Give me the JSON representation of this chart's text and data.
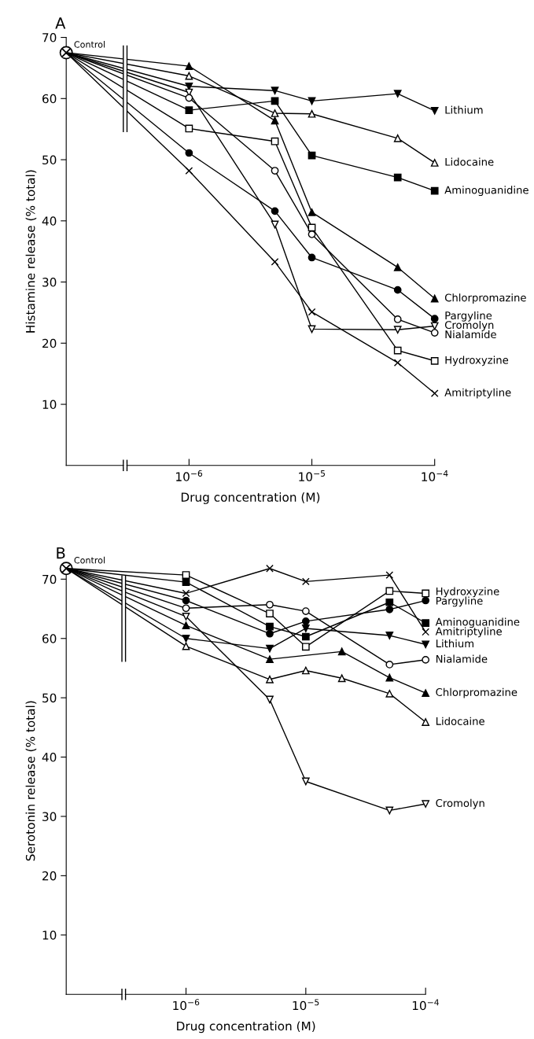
{
  "chart_data": [
    {
      "type": "line",
      "title": "A",
      "xlabel": "Drug concentration (M)",
      "ylabel": "Histamine release (% total)",
      "log": "x",
      "legend": "right",
      "xlim": [
        1e-07,
        0.0001
      ],
      "xticks": [
        {
          "value": 1e-06,
          "label": "10$^{−6}$"
        },
        {
          "value": 1e-05,
          "label": "10$^{−5}$"
        },
        {
          "value": 0.0001,
          "label": "10$^{−4}$"
        }
      ],
      "ylim": [
        0,
        70
      ],
      "yticks": [
        10,
        20,
        30,
        40,
        50,
        60,
        70
      ],
      "x": [
        1e-07,
        1e-06,
        5e-06,
        1e-05,
        5e-05,
        0.0001
      ],
      "series": [
        {
          "name": "Control",
          "type": "scatter",
          "marker": "cross",
          "color": "#000000",
          "x": [
            1e-07
          ],
          "values": [
            67.5
          ]
        },
        {
          "name": "Lithium",
          "marker": "triangle",
          "color": "#000000",
          "values": [
            67.5,
            62.0,
            61.3,
            59.6,
            60.8,
            58.0
          ]
        },
        {
          "name": "Lidocaine",
          "marker": "triangle",
          "color": "#000000",
          "values": [
            67.5,
            63.7,
            57.6,
            57.5,
            53.5,
            49.5
          ]
        },
        {
          "name": "Aminoguanidine",
          "marker": "square",
          "color": "#000000",
          "values": [
            67.5,
            58.1,
            59.6,
            50.7,
            47.1,
            44.9
          ]
        },
        {
          "name": "Chlorpromazine",
          "marker": "triangle",
          "color": "#000000",
          "values": [
            67.5,
            65.3,
            56.4,
            41.4,
            32.4,
            27.3
          ]
        },
        {
          "name": "Pargyline",
          "marker": "circle",
          "color": "#000000",
          "values": [
            67.5,
            51.1,
            41.6,
            34.0,
            28.7,
            24.0
          ]
        },
        {
          "name": "Cromolyn",
          "marker": "triangle",
          "color": "#000000",
          "values": [
            67.5,
            61.0,
            39.4,
            22.3,
            22.2,
            22.8
          ]
        },
        {
          "name": "Nialamide",
          "marker": "circle",
          "color": "#000000",
          "values": [
            67.5,
            60.1,
            48.2,
            37.8,
            23.9,
            21.7
          ]
        },
        {
          "name": "Hydroxyzine",
          "marker": "square",
          "color": "#000000",
          "values": [
            67.5,
            55.1,
            53.0,
            38.9,
            18.8,
            17.1
          ]
        },
        {
          "name": "Amitriptyline",
          "marker": "cross",
          "color": "#000000",
          "values": [
            67.5,
            48.2,
            33.3,
            25.1,
            16.8,
            11.8
          ]
        }
      ]
    },
    {
      "type": "line",
      "title": "B",
      "xlabel": "Drug concentration (M)",
      "ylabel": "Serotonin release (% total)",
      "log": "x",
      "legend": "right",
      "xlim": [
        1e-07,
        0.0001
      ],
      "xticks": [
        {
          "value": 1e-06,
          "label": "10$^{−6}$"
        },
        {
          "value": 1e-05,
          "label": "10$^{−5}$"
        },
        {
          "value": 0.0001,
          "label": "10$^{−4}$"
        }
      ],
      "ylim": [
        0,
        72
      ],
      "yticks": [
        10,
        20,
        30,
        40,
        50,
        60,
        70
      ],
      "x": [
        1e-07,
        1e-06,
        5e-06,
        1e-05,
        5e-05,
        0.0001
      ],
      "series": [
        {
          "name": "Control",
          "type": "scatter",
          "marker": "cross",
          "color": "#000000",
          "x": [
            1e-07
          ],
          "values": [
            71.8
          ]
        },
        {
          "name": "Hydroxyzine",
          "marker": "square",
          "color": "#000000",
          "values": [
            71.8,
            70.7,
            64.2,
            58.6,
            68.0,
            67.6
          ]
        },
        {
          "name": "Pargyline",
          "marker": "circle",
          "color": "#000000",
          "values": [
            71.8,
            66.4,
            60.8,
            62.9,
            64.9,
            66.4
          ]
        },
        {
          "name": "Aminoguanidine",
          "marker": "square",
          "color": "#000000",
          "values": [
            71.8,
            69.5,
            62.0,
            60.3,
            66.1,
            62.6
          ]
        },
        {
          "name": "Amitriptyline",
          "marker": "cross",
          "color": "#000000",
          "values": [
            71.8,
            67.6,
            71.8,
            69.6,
            70.7,
            61.1
          ]
        },
        {
          "name": "Lithium",
          "marker": "triangle",
          "color": "#000000",
          "values": [
            71.8,
            60.0,
            58.3,
            61.7,
            60.5,
            59.0
          ]
        },
        {
          "name": "Nialamide",
          "marker": "circle",
          "color": "#000000",
          "values": [
            71.8,
            65.1,
            65.7,
            64.6,
            55.6,
            56.4
          ]
        },
        {
          "name": "Chlorpromazine",
          "marker": "triangle",
          "color": "#000000",
          "x": [
            1e-07,
            1e-06,
            5e-06,
            2e-05,
            5e-05,
            0.0001
          ],
          "values": [
            71.8,
            62.2,
            56.5,
            57.8,
            53.4,
            50.8
          ]
        },
        {
          "name": "Lidocaine",
          "marker": "triangle",
          "color": "#000000",
          "x": [
            1e-07,
            1e-06,
            5e-06,
            1e-05,
            2e-05,
            5e-05,
            0.0001
          ],
          "values": [
            71.8,
            58.7,
            53.1,
            54.6,
            53.3,
            50.7,
            45.9
          ]
        },
        {
          "name": "Cromolyn",
          "marker": "triangle",
          "color": "#000000",
          "values": [
            71.8,
            63.7,
            49.7,
            35.9,
            31.0,
            32.1
          ]
        }
      ]
    }
  ]
}
